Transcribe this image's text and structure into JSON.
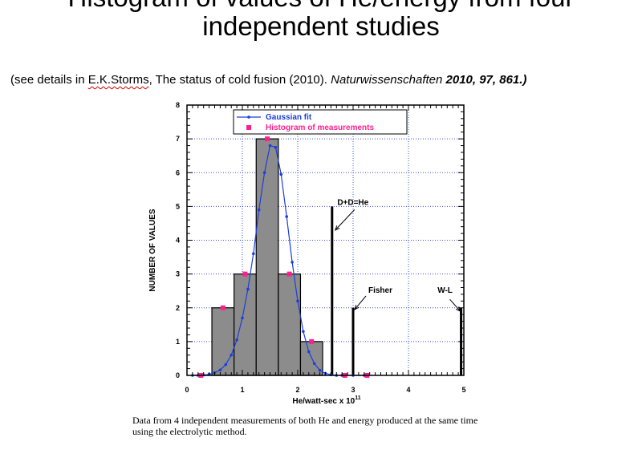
{
  "slide": {
    "title_top": "Histogram of values of He/energy from four",
    "title_bottom": "independent studies",
    "citation": {
      "open": "(see details in ",
      "author": "E.K.Storms",
      "middle": ", The status of cold fusion (2010). ",
      "journal": "Naturwissenschaften ",
      "volume": "2010, 97, 861.)"
    },
    "caption_line1": "Data from 4 independent measurements of both He and energy produced at the same time",
    "caption_line2": "using the electrolytic method."
  },
  "chart_data": {
    "type": "bar",
    "xlabel": "He/watt-sec x 10",
    "xlabel_exponent": "11",
    "ylabel": "NUMBER OF VALUES",
    "xlim": [
      0,
      5
    ],
    "ylim": [
      0,
      8
    ],
    "x_ticks": [
      "0",
      "1",
      "2",
      "3",
      "4",
      "5"
    ],
    "y_ticks": [
      "0",
      "1",
      "2",
      "3",
      "4",
      "5",
      "6",
      "7",
      "8"
    ],
    "grid": true,
    "legend_position": "top-left",
    "histogram_bars": [
      {
        "x_start": 0.45,
        "x_end": 0.85,
        "value": 2
      },
      {
        "x_start": 0.85,
        "x_end": 1.25,
        "value": 3
      },
      {
        "x_start": 1.25,
        "x_end": 1.65,
        "value": 7
      },
      {
        "x_start": 1.65,
        "x_end": 2.05,
        "value": 3
      },
      {
        "x_start": 2.05,
        "x_end": 2.45,
        "value": 1
      }
    ],
    "series": [
      {
        "name": "Gaussian fit",
        "color": "#1c3fd8",
        "x": [
          0.1,
          0.2,
          0.3,
          0.4,
          0.5,
          0.6,
          0.7,
          0.8,
          0.9,
          1.0,
          1.1,
          1.2,
          1.3,
          1.4,
          1.5,
          1.6,
          1.7,
          1.8,
          1.9,
          2.0,
          2.1,
          2.2,
          2.3,
          2.4,
          2.5,
          2.6,
          2.7,
          2.8,
          3.0,
          3.2
        ],
        "y": [
          0.0,
          0.0,
          0.01,
          0.03,
          0.08,
          0.16,
          0.32,
          0.6,
          1.05,
          1.7,
          2.55,
          3.6,
          4.9,
          6.0,
          6.8,
          6.75,
          5.95,
          4.7,
          3.35,
          2.2,
          1.3,
          0.7,
          0.35,
          0.15,
          0.06,
          0.02,
          0.0,
          0.0,
          0.0,
          0.0
        ]
      },
      {
        "name": "Histogram of measurements",
        "color": "#ff1f8f",
        "x": [
          0.25,
          0.65,
          1.05,
          1.45,
          1.85,
          2.25,
          2.85,
          3.25
        ],
        "y": [
          0,
          2,
          3,
          7,
          3,
          1,
          0,
          0
        ]
      }
    ],
    "reference_lines": [
      {
        "label": "D+D=He",
        "x": 2.62,
        "value": 5
      },
      {
        "label": "Fisher",
        "x": 3.0,
        "value": 2
      },
      {
        "label": "W-L",
        "x": 4.95,
        "value": 2
      }
    ]
  }
}
